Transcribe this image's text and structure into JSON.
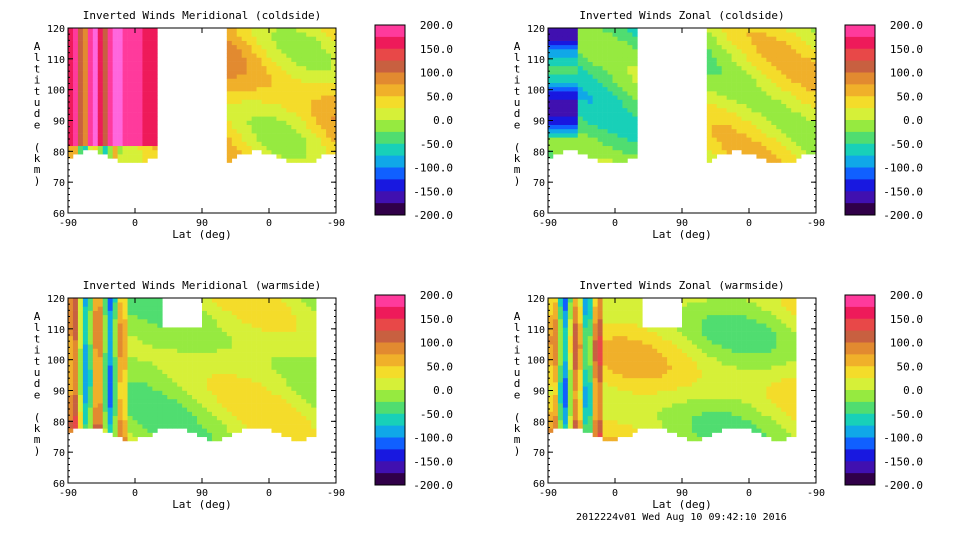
{
  "footer": "2012224v01 Wed Aug 10 09:42:10 2016",
  "chart_data": [
    {
      "type": "heatmap",
      "title": "Inverted Winds Meridional (coldside)",
      "xlabel": "Lat (deg)",
      "ylabel": "Altitude (km)",
      "xticks": [
        "-90",
        "0",
        "90",
        "0",
        "-90"
      ],
      "yticks": [
        60,
        70,
        80,
        90,
        100,
        110,
        120
      ],
      "ylim": [
        60,
        120
      ],
      "colorbar": [
        200.0,
        150.0,
        100.0,
        50.0,
        0.0,
        -50.0,
        -100.0,
        -150.0,
        -200.0
      ],
      "colorbar_labels": [
        "200.0",
        "150.0",
        "100.0",
        "50.0",
        "0.0",
        "-50.0",
        "-100.0",
        "-150.0",
        "-200.0"
      ]
    },
    {
      "type": "heatmap",
      "title": "Inverted Winds Zonal (coldside)",
      "xlabel": "Lat (deg)",
      "ylabel": "Altitude (km)",
      "xticks": [
        "-90",
        "0",
        "90",
        "0",
        "-90"
      ],
      "yticks": [
        60,
        70,
        80,
        90,
        100,
        110,
        120
      ],
      "ylim": [
        60,
        120
      ],
      "colorbar": [
        200.0,
        150.0,
        100.0,
        50.0,
        0.0,
        -50.0,
        -100.0,
        -150.0,
        -200.0
      ],
      "colorbar_labels": [
        "200.0",
        "150.0",
        "100.0",
        "50.0",
        "0.0",
        "-50.0",
        "-100.0",
        "-150.0",
        "-200.0"
      ]
    },
    {
      "type": "heatmap",
      "title": "Inverted Winds Meridional (warmside)",
      "xlabel": "Lat (deg)",
      "ylabel": "Altitude (km)",
      "xticks": [
        "-90",
        "0",
        "90",
        "0",
        "-90"
      ],
      "yticks": [
        60,
        70,
        80,
        90,
        100,
        110,
        120
      ],
      "ylim": [
        60,
        120
      ],
      "colorbar": [
        200.0,
        150.0,
        100.0,
        50.0,
        0.0,
        -50.0,
        -100.0,
        -150.0,
        -200.0
      ],
      "colorbar_labels": [
        "200.0",
        "150.0",
        "100.0",
        "50.0",
        "0.0",
        "-50.0",
        "-100.0",
        "-150.0",
        "-200.0"
      ]
    },
    {
      "type": "heatmap",
      "title": "Inverted Winds Zonal (warmside)",
      "xlabel": "Lat (deg)",
      "ylabel": "Altitude (km)",
      "xticks": [
        "-90",
        "0",
        "90",
        "0",
        "-90"
      ],
      "yticks": [
        60,
        70,
        80,
        90,
        100,
        110,
        120
      ],
      "ylim": [
        60,
        120
      ],
      "colorbar": [
        200.0,
        150.0,
        100.0,
        50.0,
        0.0,
        -50.0,
        -100.0,
        -150.0,
        -200.0
      ],
      "colorbar_labels": [
        "200.0",
        "150.0",
        "100.0",
        "50.0",
        "0.0",
        "-50.0",
        "-100.0",
        "-150.0",
        "-200.0"
      ]
    }
  ]
}
